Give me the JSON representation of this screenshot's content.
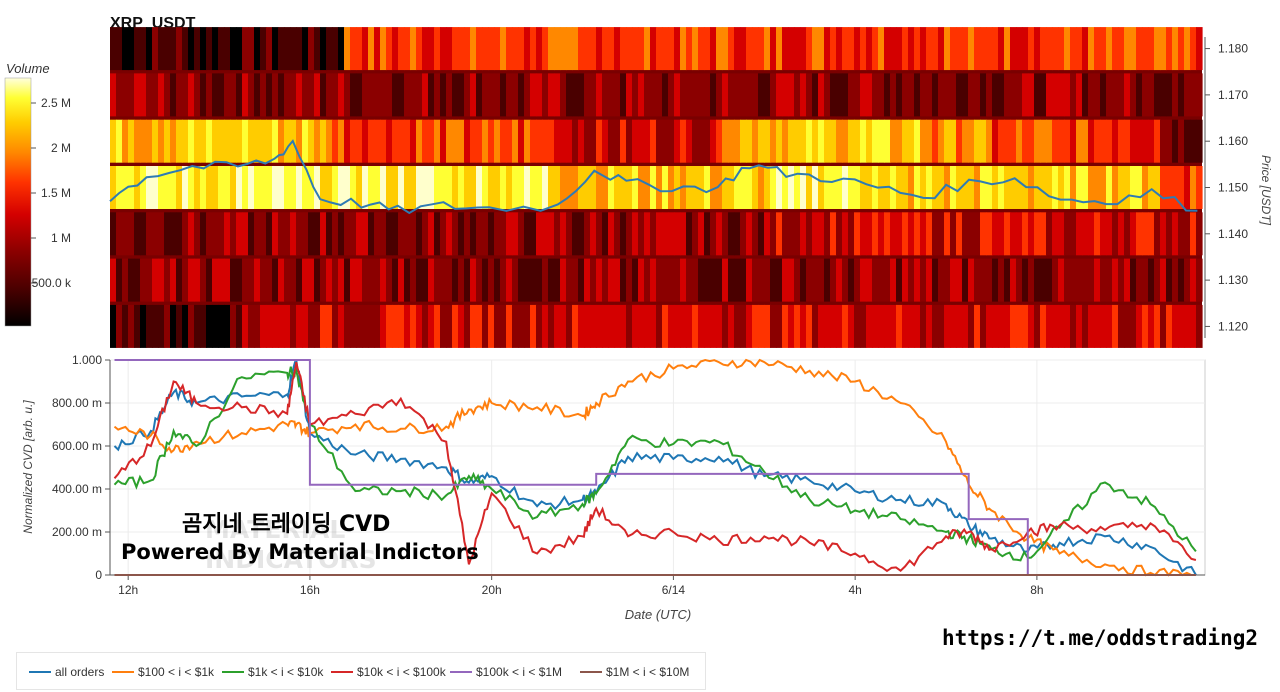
{
  "header": {
    "title": "XRP_USDT"
  },
  "colorbar": {
    "title": "Volume",
    "ticks": [
      "2.5 M",
      "2 M",
      "1.5 M",
      "1 M",
      "500.0 k"
    ]
  },
  "heatmap": {
    "price_axis_label": "Price [USDT]",
    "price_ticks": [
      "1.180",
      "1.170",
      "1.160",
      "1.150",
      "1.140",
      "1.130",
      "1.120"
    ],
    "price_range": [
      1.1175,
      1.1825
    ],
    "price_bins": [
      1.18,
      1.17,
      1.16,
      1.15,
      1.14,
      1.13,
      1.12
    ],
    "color_scale": [
      "#000000",
      "#4a0000",
      "#8b0000",
      "#d40000",
      "#ff3300",
      "#ff8800",
      "#ffcc00",
      "#ffff33",
      "#ffffcc"
    ],
    "price_line_color": "#2e7bb4"
  },
  "cvd_chart": {
    "ylabel": "Normalized CVD [arb. u.]",
    "xlabel": "Date (UTC)",
    "yticks": [
      "1.000",
      "800.00 m",
      "600.00 m",
      "400.00 m",
      "200.00 m",
      "0"
    ],
    "xticks": [
      "12h",
      "16h",
      "20h",
      "6/14",
      "4h",
      "8h"
    ],
    "overlay_title": "곰지네 트레이딩 CVD",
    "overlay_subtitle": "Powered By Material Indictors"
  },
  "chart_data": [
    {
      "type": "heatmap",
      "title": "XRP_USDT",
      "ylabel": "Price [USDT]",
      "colorbar_label": "Volume",
      "y_bins": [
        1.18,
        1.17,
        1.16,
        1.15,
        1.14,
        1.13,
        1.12
      ],
      "time_range": [
        "11.7h",
        "11.6h (+1d)"
      ],
      "price_line": {
        "name": "price",
        "x_hours": [
          11.7,
          12.5,
          13.5,
          14.5,
          15.3,
          15.7,
          16.3,
          17.2,
          18.0,
          19.0,
          20.0,
          21.5,
          22.3,
          23.0,
          24.0,
          25.0,
          25.7,
          26.5,
          27.5,
          28.5,
          29.5,
          30.5,
          31.5,
          32.5,
          33.5,
          34.5,
          35.5
        ],
        "y_price": [
          1.1475,
          1.1525,
          1.1545,
          1.1545,
          1.156,
          1.16,
          1.1475,
          1.1465,
          1.145,
          1.146,
          1.1455,
          1.146,
          1.154,
          1.151,
          1.15,
          1.15,
          1.155,
          1.153,
          1.152,
          1.15,
          1.148,
          1.151,
          1.152,
          1.1475,
          1.147,
          1.149,
          1.145
        ]
      }
    },
    {
      "type": "line",
      "title": "",
      "xlabel": "Date (UTC)",
      "ylabel": "Normalized CVD [arb. u.]",
      "ylim": [
        0,
        1
      ],
      "x_hours": [
        11.7,
        12.5,
        13.0,
        13.5,
        14.5,
        15.5,
        15.7,
        16.0,
        17.0,
        18.0,
        19.0,
        19.5,
        20.0,
        21.0,
        22.0,
        22.3,
        23.0,
        24.0,
        25.0,
        26.0,
        27.0,
        28.0,
        29.0,
        30.0,
        30.5,
        31.0,
        31.8,
        32.5,
        33.5,
        34.5,
        35.5
      ],
      "series": [
        {
          "name": "all orders",
          "color": "#1f77b4",
          "values": [
            0.6,
            0.67,
            0.85,
            0.8,
            0.83,
            0.84,
            1.0,
            0.66,
            0.56,
            0.54,
            0.5,
            0.43,
            0.46,
            0.32,
            0.35,
            0.38,
            0.55,
            0.54,
            0.55,
            0.46,
            0.44,
            0.39,
            0.35,
            0.33,
            0.23,
            0.17,
            0.11,
            0.15,
            0.18,
            0.13,
            0.0
          ]
        },
        {
          "name": "$100 < i < $1k",
          "color": "#ff7f0e",
          "values": [
            0.69,
            0.65,
            0.58,
            0.62,
            0.66,
            0.7,
            0.7,
            0.66,
            0.7,
            0.68,
            0.69,
            0.77,
            0.8,
            0.78,
            0.74,
            0.8,
            0.9,
            0.96,
            0.99,
            0.99,
            0.95,
            0.9,
            0.8,
            0.62,
            0.42,
            0.3,
            0.17,
            0.1,
            0.05,
            0.01,
            0.0
          ]
        },
        {
          "name": "$1k < i < $10k",
          "color": "#2ca02c",
          "values": [
            0.42,
            0.44,
            0.67,
            0.6,
            0.92,
            0.94,
            0.95,
            0.7,
            0.39,
            0.39,
            0.37,
            0.46,
            0.4,
            0.27,
            0.33,
            0.38,
            0.63,
            0.61,
            0.62,
            0.48,
            0.35,
            0.3,
            0.26,
            0.2,
            0.17,
            0.12,
            0.08,
            0.22,
            0.43,
            0.33,
            0.11
          ]
        },
        {
          "name": "$10k < i < $100k",
          "color": "#d62728",
          "values": [
            0.45,
            0.6,
            0.9,
            0.8,
            0.78,
            0.75,
            0.99,
            0.7,
            0.75,
            0.82,
            0.62,
            0.05,
            0.38,
            0.1,
            0.18,
            0.31,
            0.18,
            0.2,
            0.16,
            0.18,
            0.15,
            0.1,
            0.02,
            0.18,
            0.2,
            0.12,
            0.2,
            0.23,
            0.21,
            0.24,
            0.07
          ]
        },
        {
          "name": "$100k < i < $1M",
          "color": "#9467bd",
          "values": [
            1.0,
            1.0,
            1.0,
            1.0,
            1.0,
            1.0,
            1.0,
            0.42,
            0.42,
            0.42,
            0.42,
            0.42,
            0.42,
            0.42,
            0.42,
            0.47,
            0.47,
            0.47,
            0.47,
            0.47,
            0.47,
            0.47,
            0.47,
            0.47,
            0.26,
            0.26,
            0.0,
            0.0,
            0.0,
            0.0,
            0.0
          ]
        },
        {
          "name": "$1M < i < $10M",
          "color": "#8c564b",
          "values": [
            0,
            0,
            0,
            0,
            0,
            0,
            0,
            0,
            0,
            0,
            0,
            0,
            0,
            0,
            0,
            0,
            0,
            0,
            0,
            0,
            0,
            0,
            0,
            0,
            0,
            0,
            0,
            0,
            0,
            0,
            0
          ]
        }
      ],
      "legend_position": "bottom-left"
    }
  ],
  "watermark": {
    "line1": "MATERIAL",
    "line2": "INDICATORS"
  },
  "link": {
    "url": "https://t.me/oddstrading2"
  }
}
